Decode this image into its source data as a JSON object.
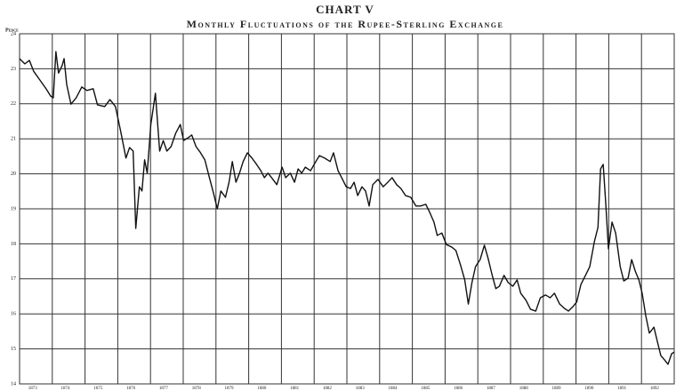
{
  "chart_data": {
    "type": "line",
    "title": "CHART V",
    "subtitle": "Monthly Fluctuations of the Rupee-Sterling Exchange",
    "y_label": "Pence",
    "xlim": [
      1873,
      1893
    ],
    "xticks": [
      1873,
      1874,
      1875,
      1876,
      1877,
      1878,
      1879,
      1880,
      1881,
      1882,
      1883,
      1884,
      1885,
      1886,
      1887,
      1888,
      1889,
      1890,
      1891,
      1892
    ],
    "ylim": [
      14,
      24
    ],
    "yticks": [
      14,
      15,
      16,
      17,
      18,
      19,
      20,
      21,
      22,
      23,
      24
    ],
    "grid": true,
    "color": "#111111",
    "x": [
      1873.0,
      1873.16,
      1873.3,
      1873.43,
      1873.62,
      1873.81,
      1873.95,
      1874.03,
      1874.11,
      1874.19,
      1874.3,
      1874.36,
      1874.44,
      1874.57,
      1874.73,
      1874.9,
      1875.06,
      1875.25,
      1875.38,
      1875.6,
      1875.76,
      1875.93,
      1876.09,
      1876.25,
      1876.36,
      1876.47,
      1876.55,
      1876.66,
      1876.74,
      1876.82,
      1876.9,
      1877.01,
      1877.15,
      1877.28,
      1877.39,
      1877.5,
      1877.63,
      1877.77,
      1877.91,
      1878.01,
      1878.15,
      1878.26,
      1878.39,
      1878.53,
      1878.66,
      1878.8,
      1878.93,
      1879.04,
      1879.15,
      1879.29,
      1879.4,
      1879.5,
      1879.61,
      1879.72,
      1879.83,
      1879.96,
      1880.1,
      1880.24,
      1880.37,
      1880.48,
      1880.59,
      1880.7,
      1880.86,
      1881.02,
      1881.13,
      1881.27,
      1881.4,
      1881.51,
      1881.62,
      1881.73,
      1881.89,
      1882.05,
      1882.16,
      1882.32,
      1882.49,
      1882.59,
      1882.73,
      1882.84,
      1882.98,
      1883.11,
      1883.22,
      1883.33,
      1883.46,
      1883.57,
      1883.68,
      1883.79,
      1883.95,
      1884.11,
      1884.25,
      1884.38,
      1884.52,
      1884.65,
      1884.79,
      1884.95,
      1885.11,
      1885.25,
      1885.41,
      1885.52,
      1885.66,
      1885.76,
      1885.9,
      1886.04,
      1886.2,
      1886.33,
      1886.47,
      1886.6,
      1886.71,
      1886.82,
      1886.93,
      1887.07,
      1887.2,
      1887.31,
      1887.44,
      1887.55,
      1887.66,
      1887.8,
      1887.93,
      1888.07,
      1888.2,
      1888.31,
      1888.47,
      1888.61,
      1888.77,
      1888.91,
      1889.07,
      1889.21,
      1889.34,
      1889.5,
      1889.64,
      1889.77,
      1889.91,
      1890.02,
      1890.15,
      1890.29,
      1890.42,
      1890.56,
      1890.67,
      1890.75,
      1890.83,
      1890.91,
      1890.99,
      1891.1,
      1891.21,
      1891.35,
      1891.46,
      1891.59,
      1891.7,
      1891.81,
      1891.92,
      1892.02,
      1892.13,
      1892.24,
      1892.38,
      1892.49,
      1892.59,
      1892.7,
      1892.81,
      1892.92,
      1893.0
    ],
    "values": [
      23.29,
      23.14,
      23.24,
      22.93,
      22.68,
      22.43,
      22.22,
      22.17,
      23.49,
      22.88,
      23.09,
      23.29,
      22.55,
      21.99,
      22.17,
      22.48,
      22.38,
      22.43,
      21.97,
      21.92,
      22.12,
      21.92,
      21.21,
      20.45,
      20.75,
      20.65,
      18.44,
      19.63,
      19.51,
      20.4,
      20.02,
      21.41,
      22.3,
      20.65,
      20.95,
      20.65,
      20.78,
      21.16,
      21.41,
      20.95,
      21.03,
      21.11,
      20.78,
      20.6,
      20.4,
      19.89,
      19.43,
      19.0,
      19.51,
      19.33,
      19.76,
      20.35,
      19.76,
      20.02,
      20.35,
      20.6,
      20.45,
      20.27,
      20.09,
      19.89,
      20.02,
      19.89,
      19.69,
      20.19,
      19.89,
      20.02,
      19.76,
      20.14,
      20.02,
      20.19,
      20.09,
      20.35,
      20.52,
      20.45,
      20.35,
      20.6,
      20.09,
      19.89,
      19.63,
      19.58,
      19.76,
      19.38,
      19.63,
      19.51,
      19.08,
      19.69,
      19.84,
      19.63,
      19.76,
      19.89,
      19.69,
      19.58,
      19.38,
      19.33,
      19.08,
      19.08,
      19.13,
      18.92,
      18.62,
      18.24,
      18.31,
      17.98,
      17.91,
      17.81,
      17.4,
      16.97,
      16.28,
      16.89,
      17.35,
      17.55,
      17.96,
      17.6,
      17.1,
      16.72,
      16.79,
      17.1,
      16.89,
      16.79,
      16.97,
      16.59,
      16.39,
      16.13,
      16.08,
      16.46,
      16.54,
      16.46,
      16.59,
      16.28,
      16.16,
      16.08,
      16.21,
      16.34,
      16.84,
      17.1,
      17.35,
      18.06,
      18.47,
      20.14,
      20.27,
      19.13,
      17.86,
      18.62,
      18.31,
      17.35,
      16.94,
      17.02,
      17.55,
      17.22,
      16.97,
      16.59,
      15.95,
      15.45,
      15.62,
      15.19,
      14.81,
      14.69,
      14.56,
      14.86,
      14.91
    ]
  }
}
